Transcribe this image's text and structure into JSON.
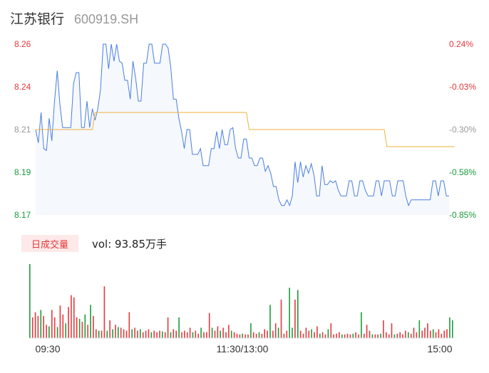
{
  "header": {
    "name": "江苏银行",
    "code": "600919.SH"
  },
  "volume_panel": {
    "badge_label": "日成交量",
    "vol_label": "vol: 93.85万手"
  },
  "colors": {
    "price_line": "#4a7fe0",
    "avg_line": "#f0b23c",
    "up": "#e4393c",
    "down": "#1a9c3c",
    "neutral": "#999999",
    "area_fill": "#f5f8fd"
  },
  "chart_data": {
    "type": "line",
    "title": "",
    "xlabel": "",
    "ylabel": "",
    "ylim": [
      8.17,
      8.26
    ],
    "y_ticks_left": [
      "8.26",
      "8.24",
      "8.21",
      "8.19",
      "8.17"
    ],
    "y_ticks_right": [
      "0.24%",
      "-0.03%",
      "-0.30%",
      "-0.58%",
      "-0.85%"
    ],
    "x_ticks": [
      "09:30",
      "11:30/13:00",
      "15:00"
    ],
    "series": [
      {
        "values": [
          8.215,
          8.208,
          8.224,
          8.205,
          8.204,
          8.221,
          8.209,
          8.23,
          8.246,
          8.228,
          8.216,
          8.216,
          8.216,
          8.216,
          8.239,
          8.245,
          8.245,
          8.216,
          8.216,
          8.23,
          8.216,
          8.226,
          8.22,
          8.226,
          8.236,
          8.26,
          8.26,
          8.247,
          8.26,
          8.251,
          8.26,
          8.251,
          8.25,
          8.241,
          8.241,
          8.231,
          8.251,
          8.242,
          8.23,
          8.23,
          8.25,
          8.25,
          8.26,
          8.26,
          8.25,
          8.25,
          8.25,
          8.26,
          8.26,
          8.258,
          8.248,
          8.231,
          8.231,
          8.221,
          8.214,
          8.205,
          8.215,
          8.215,
          8.202,
          8.202,
          8.202,
          8.205,
          8.196,
          8.196,
          8.196,
          8.205,
          8.205,
          8.214,
          8.205,
          8.215,
          8.207,
          8.207,
          8.215,
          8.216,
          8.205,
          8.2,
          8.2,
          8.21,
          8.21,
          8.2,
          8.2,
          8.196,
          8.196,
          8.2,
          8.2,
          8.193,
          8.196,
          8.192,
          8.185,
          8.185,
          8.178,
          8.175,
          8.175,
          8.178,
          8.175,
          8.18,
          8.198,
          8.187,
          8.198,
          8.19,
          8.196,
          8.192,
          8.197,
          8.191,
          8.18,
          8.18,
          8.196,
          8.186,
          8.186,
          8.188,
          8.187,
          8.188,
          8.183,
          8.18,
          8.18,
          8.18,
          8.188,
          8.188,
          8.18,
          8.18,
          8.188,
          8.188,
          8.183,
          8.18,
          8.18,
          8.18,
          8.188,
          8.188,
          8.18,
          8.188,
          8.188,
          8.188,
          8.18,
          8.18,
          8.188,
          8.188,
          8.188,
          8.18,
          8.175,
          8.178,
          8.178,
          8.178,
          8.178,
          8.178,
          8.178,
          8.178,
          8.178,
          8.188,
          8.188,
          8.18,
          8.188,
          8.188,
          8.18,
          8.18
        ]
      },
      {
        "values": [
          8.215,
          8.215,
          8.215,
          8.215,
          8.215,
          8.215,
          8.215,
          8.215,
          8.215,
          8.215,
          8.215,
          8.215,
          8.215,
          8.215,
          8.215,
          8.215,
          8.215,
          8.215,
          8.215,
          8.215,
          8.215,
          8.215,
          8.224,
          8.224,
          8.224,
          8.224,
          8.224,
          8.224,
          8.224,
          8.224,
          8.224,
          8.224,
          8.224,
          8.224,
          8.224,
          8.224,
          8.224,
          8.224,
          8.224,
          8.224,
          8.224,
          8.224,
          8.224,
          8.224,
          8.224,
          8.224,
          8.224,
          8.224,
          8.224,
          8.224,
          8.224,
          8.224,
          8.224,
          8.224,
          8.224,
          8.224,
          8.224,
          8.224,
          8.224,
          8.224,
          8.224,
          8.224,
          8.224,
          8.224,
          8.224,
          8.224,
          8.224,
          8.224,
          8.224,
          8.224,
          8.224,
          8.224,
          8.224,
          8.224,
          8.224,
          8.224,
          8.224,
          8.224,
          8.224,
          8.215,
          8.215,
          8.215,
          8.215,
          8.215,
          8.215,
          8.215,
          8.215,
          8.215,
          8.215,
          8.215,
          8.215,
          8.215,
          8.215,
          8.215,
          8.215,
          8.215,
          8.215,
          8.215,
          8.215,
          8.215,
          8.215,
          8.215,
          8.215,
          8.215,
          8.215,
          8.215,
          8.215,
          8.215,
          8.215,
          8.215,
          8.215,
          8.215,
          8.215,
          8.215,
          8.215,
          8.215,
          8.215,
          8.215,
          8.215,
          8.215,
          8.215,
          8.215,
          8.215,
          8.215,
          8.215,
          8.215,
          8.215,
          8.215,
          8.215,
          8.215,
          8.206,
          8.206,
          8.206,
          8.206,
          8.206,
          8.206,
          8.206,
          8.206,
          8.206,
          8.206,
          8.206,
          8.206,
          8.206,
          8.206,
          8.206,
          8.206,
          8.206,
          8.206,
          8.206,
          8.206,
          8.206,
          8.206,
          8.206,
          8.206,
          8.206,
          8.206
        ]
      }
    ],
    "volume_series": [
      {
        "v": 100,
        "d": 1
      },
      {
        "v": 28,
        "d": 0
      },
      {
        "v": 35,
        "d": 0
      },
      {
        "v": 30,
        "d": 0
      },
      {
        "v": 38,
        "d": 1
      },
      {
        "v": 30,
        "d": 0
      },
      {
        "v": 18,
        "d": 0
      },
      {
        "v": 16,
        "d": 1
      },
      {
        "v": 38,
        "d": 0
      },
      {
        "v": 28,
        "d": 0
      },
      {
        "v": 15,
        "d": 1
      },
      {
        "v": 44,
        "d": 0
      },
      {
        "v": 32,
        "d": 0
      },
      {
        "v": 20,
        "d": 1
      },
      {
        "v": 42,
        "d": 0
      },
      {
        "v": 58,
        "d": 0
      },
      {
        "v": 55,
        "d": 0
      },
      {
        "v": 28,
        "d": 0
      },
      {
        "v": 26,
        "d": 1
      },
      {
        "v": 22,
        "d": 0
      },
      {
        "v": 32,
        "d": 1
      },
      {
        "v": 18,
        "d": 0
      },
      {
        "v": 45,
        "d": 1
      },
      {
        "v": 30,
        "d": 0
      },
      {
        "v": 12,
        "d": 0
      },
      {
        "v": 10,
        "d": 1
      },
      {
        "v": 10,
        "d": 0
      },
      {
        "v": 70,
        "d": 0
      },
      {
        "v": 10,
        "d": 1
      },
      {
        "v": 24,
        "d": 0
      },
      {
        "v": 12,
        "d": 1
      },
      {
        "v": 18,
        "d": 0
      },
      {
        "v": 15,
        "d": 1
      },
      {
        "v": 14,
        "d": 0
      },
      {
        "v": 12,
        "d": 0
      },
      {
        "v": 10,
        "d": 0
      },
      {
        "v": 35,
        "d": 0
      },
      {
        "v": 12,
        "d": 1
      },
      {
        "v": 14,
        "d": 0
      },
      {
        "v": 10,
        "d": 0
      },
      {
        "v": 12,
        "d": 1
      },
      {
        "v": 8,
        "d": 0
      },
      {
        "v": 10,
        "d": 0
      },
      {
        "v": 12,
        "d": 0
      },
      {
        "v": 8,
        "d": 1
      },
      {
        "v": 10,
        "d": 0
      },
      {
        "v": 8,
        "d": 0
      },
      {
        "v": 10,
        "d": 0
      },
      {
        "v": 9,
        "d": 1
      },
      {
        "v": 8,
        "d": 0
      },
      {
        "v": 28,
        "d": 0
      },
      {
        "v": 8,
        "d": 1
      },
      {
        "v": 12,
        "d": 0
      },
      {
        "v": 10,
        "d": 0
      },
      {
        "v": 28,
        "d": 1
      },
      {
        "v": 8,
        "d": 0
      },
      {
        "v": 10,
        "d": 0
      },
      {
        "v": 8,
        "d": 0
      },
      {
        "v": 14,
        "d": 0
      },
      {
        "v": 8,
        "d": 1
      },
      {
        "v": 10,
        "d": 0
      },
      {
        "v": 6,
        "d": 0
      },
      {
        "v": 14,
        "d": 1
      },
      {
        "v": 8,
        "d": 0
      },
      {
        "v": 8,
        "d": 0
      },
      {
        "v": 34,
        "d": 0
      },
      {
        "v": 14,
        "d": 1
      },
      {
        "v": 10,
        "d": 0
      },
      {
        "v": 16,
        "d": 0
      },
      {
        "v": 10,
        "d": 1
      },
      {
        "v": 14,
        "d": 0
      },
      {
        "v": 8,
        "d": 0
      },
      {
        "v": 18,
        "d": 0
      },
      {
        "v": 10,
        "d": 1
      },
      {
        "v": 8,
        "d": 0
      },
      {
        "v": 6,
        "d": 0
      },
      {
        "v": 5,
        "d": 0
      },
      {
        "v": 6,
        "d": 1
      },
      {
        "v": 5,
        "d": 0
      },
      {
        "v": 5,
        "d": 0
      },
      {
        "v": 20,
        "d": 1
      },
      {
        "v": 8,
        "d": 0
      },
      {
        "v": 6,
        "d": 0
      },
      {
        "v": 8,
        "d": 1
      },
      {
        "v": 6,
        "d": 0
      },
      {
        "v": 12,
        "d": 0
      },
      {
        "v": 10,
        "d": 0
      },
      {
        "v": 45,
        "d": 1
      },
      {
        "v": 10,
        "d": 0
      },
      {
        "v": 20,
        "d": 0
      },
      {
        "v": 14,
        "d": 1
      },
      {
        "v": 52,
        "d": 0
      },
      {
        "v": 6,
        "d": 0
      },
      {
        "v": 10,
        "d": 0
      },
      {
        "v": 68,
        "d": 1
      },
      {
        "v": 14,
        "d": 1
      },
      {
        "v": 52,
        "d": 0
      },
      {
        "v": 65,
        "d": 1
      },
      {
        "v": 10,
        "d": 0
      },
      {
        "v": 6,
        "d": 0
      },
      {
        "v": 14,
        "d": 0
      },
      {
        "v": 10,
        "d": 0
      },
      {
        "v": 12,
        "d": 1
      },
      {
        "v": 8,
        "d": 0
      },
      {
        "v": 16,
        "d": 0
      },
      {
        "v": 6,
        "d": 1
      },
      {
        "v": 8,
        "d": 0
      },
      {
        "v": 5,
        "d": 0
      },
      {
        "v": 12,
        "d": 1
      },
      {
        "v": 20,
        "d": 0
      },
      {
        "v": 5,
        "d": 0
      },
      {
        "v": 6,
        "d": 0
      },
      {
        "v": 8,
        "d": 0
      },
      {
        "v": 5,
        "d": 1
      },
      {
        "v": 5,
        "d": 0
      },
      {
        "v": 6,
        "d": 0
      },
      {
        "v": 5,
        "d": 0
      },
      {
        "v": 6,
        "d": 1
      },
      {
        "v": 8,
        "d": 0
      },
      {
        "v": 5,
        "d": 0
      },
      {
        "v": 35,
        "d": 1
      },
      {
        "v": 6,
        "d": 0
      },
      {
        "v": 18,
        "d": 0
      },
      {
        "v": 10,
        "d": 0
      },
      {
        "v": 5,
        "d": 1
      },
      {
        "v": 5,
        "d": 0
      },
      {
        "v": 5,
        "d": 0
      },
      {
        "v": 6,
        "d": 1
      },
      {
        "v": 24,
        "d": 0
      },
      {
        "v": 8,
        "d": 0
      },
      {
        "v": 5,
        "d": 0
      },
      {
        "v": 20,
        "d": 0
      },
      {
        "v": 5,
        "d": 1
      },
      {
        "v": 6,
        "d": 0
      },
      {
        "v": 8,
        "d": 0
      },
      {
        "v": 5,
        "d": 0
      },
      {
        "v": 10,
        "d": 0
      },
      {
        "v": 8,
        "d": 1
      },
      {
        "v": 6,
        "d": 0
      },
      {
        "v": 14,
        "d": 0
      },
      {
        "v": 8,
        "d": 0
      },
      {
        "v": 24,
        "d": 1
      },
      {
        "v": 10,
        "d": 0
      },
      {
        "v": 14,
        "d": 0
      },
      {
        "v": 20,
        "d": 0
      },
      {
        "v": 10,
        "d": 0
      },
      {
        "v": 12,
        "d": 1
      },
      {
        "v": 8,
        "d": 0
      },
      {
        "v": 12,
        "d": 0
      },
      {
        "v": 6,
        "d": 0
      },
      {
        "v": 10,
        "d": 0
      },
      {
        "v": 12,
        "d": 0
      },
      {
        "v": 28,
        "d": 1
      },
      {
        "v": 24,
        "d": 1
      }
    ]
  }
}
